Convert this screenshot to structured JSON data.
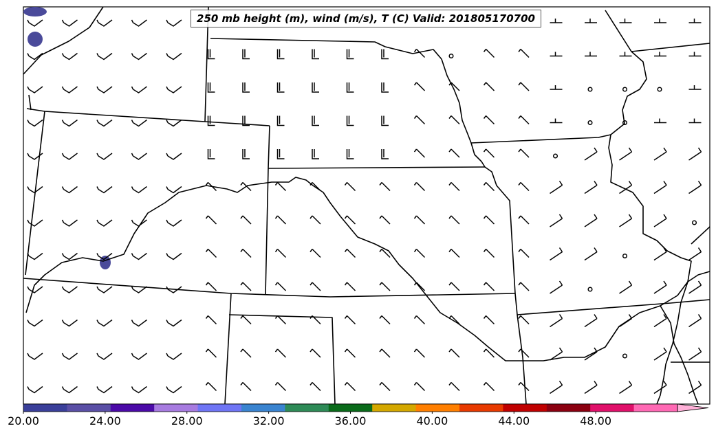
{
  "title": "250 mb height (m), wind (m/s), T (C) Valid: 201805170700",
  "colorbar": {
    "tick_labels": [
      "20.00",
      "24.00",
      "28.00",
      "32.00",
      "36.00",
      "40.00",
      "44.00",
      "48.00"
    ],
    "tick_values": [
      20,
      24,
      28,
      32,
      36,
      40,
      44,
      48
    ],
    "range": [
      20,
      52
    ],
    "extend": "max",
    "colors": [
      "#3a3f9a",
      "#5a4fa6",
      "#4b0aa8",
      "#a77be0",
      "#6f75f5",
      "#3a84d0",
      "#2e8b57",
      "#0a6b1a",
      "#d4a800",
      "#ff7f00",
      "#e83a00",
      "#c00000",
      "#8b0010",
      "#e0106a",
      "#ff69b4",
      "#ffb0d8"
    ]
  },
  "map": {
    "field": "250 mb temperature shading, wind barbs",
    "shaded_color": "#4a4a9a",
    "calm_marker": "circle",
    "barb_color": "#000000",
    "boundary_color": "#000000"
  }
}
